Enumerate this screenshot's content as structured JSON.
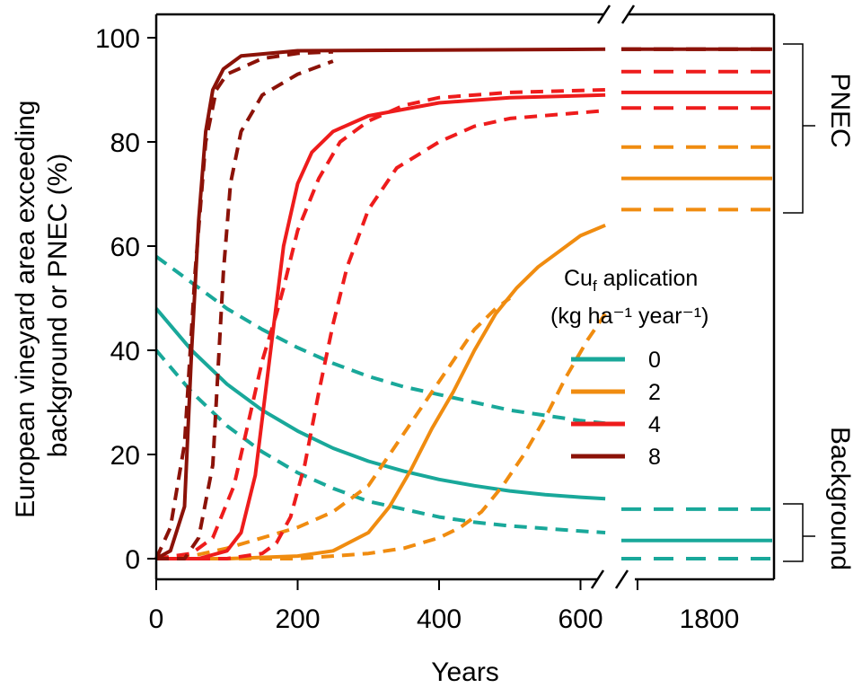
{
  "chart_data": {
    "type": "line",
    "xlabel": "Years",
    "ylabel_lines": [
      "European vineyard area exceeding",
      "background or PNEC (%)"
    ],
    "ylim": [
      0,
      100
    ],
    "xlim_main": [
      0,
      640
    ],
    "x_ticks_main": [
      0,
      200,
      400,
      600
    ],
    "x_tick_labels_main": [
      "0",
      "200",
      "400",
      "600"
    ],
    "x_tick_break": [
      1800
    ],
    "x_tick_labels_break": [
      "1800"
    ],
    "y_ticks": [
      0,
      20,
      40,
      60,
      80,
      100
    ],
    "y_tick_labels": [
      "0",
      "20",
      "40",
      "60",
      "80",
      "100"
    ],
    "axis_break": true,
    "legend": {
      "title_line1_main": "Cu",
      "title_line1_sub": "f",
      "title_line1_rest": " aplication",
      "title_line2": "(kg ha⁻¹ year⁻¹)",
      "placement": "center-right",
      "entries": [
        {
          "label": "0",
          "color": "#19a89a"
        },
        {
          "label": "2",
          "color": "#f08c10"
        },
        {
          "label": "4",
          "color": "#ee1c1c"
        },
        {
          "label": "8",
          "color": "#8b1208"
        }
      ]
    },
    "brackets": [
      {
        "label": "PNEC",
        "range": [
          67,
          98
        ]
      },
      {
        "label": "Background",
        "range": [
          0,
          11
        ]
      }
    ],
    "series": [
      {
        "name": "0",
        "style": "solid",
        "color": "#19a89a",
        "points": [
          [
            0,
            48
          ],
          [
            50,
            40
          ],
          [
            100,
            33.5
          ],
          [
            150,
            28.5
          ],
          [
            200,
            24.5
          ],
          [
            250,
            21.2
          ],
          [
            300,
            18.7
          ],
          [
            350,
            16.8
          ],
          [
            400,
            15.2
          ],
          [
            450,
            14
          ],
          [
            500,
            13
          ],
          [
            550,
            12.3
          ],
          [
            600,
            11.8
          ],
          [
            635,
            11.5
          ]
        ],
        "final": 3.5
      },
      {
        "name": "0",
        "style": "dashed",
        "color": "#19a89a",
        "points": [
          [
            0,
            58
          ],
          [
            50,
            53
          ],
          [
            100,
            48
          ],
          [
            150,
            44
          ],
          [
            200,
            40.5
          ],
          [
            250,
            37.5
          ],
          [
            300,
            35
          ],
          [
            350,
            33
          ],
          [
            400,
            31.5
          ],
          [
            450,
            30
          ],
          [
            500,
            28.5
          ],
          [
            550,
            27.5
          ],
          [
            600,
            26.5
          ],
          [
            635,
            26
          ]
        ],
        "final": 9.5
      },
      {
        "name": "0",
        "style": "dashed",
        "color": "#19a89a",
        "points": [
          [
            0,
            40
          ],
          [
            50,
            32
          ],
          [
            100,
            25.5
          ],
          [
            150,
            20.5
          ],
          [
            200,
            16.5
          ],
          [
            250,
            13.5
          ],
          [
            300,
            11
          ],
          [
            350,
            9.5
          ],
          [
            400,
            8
          ],
          [
            450,
            7
          ],
          [
            500,
            6.3
          ],
          [
            550,
            5.8
          ],
          [
            600,
            5.3
          ],
          [
            635,
            5
          ]
        ],
        "final": 0
      },
      {
        "name": "2",
        "style": "solid",
        "color": "#f08c10",
        "points": [
          [
            0,
            0
          ],
          [
            100,
            0
          ],
          [
            200,
            0.5
          ],
          [
            250,
            1.5
          ],
          [
            300,
            5
          ],
          [
            330,
            10
          ],
          [
            360,
            17
          ],
          [
            390,
            25
          ],
          [
            420,
            32
          ],
          [
            450,
            40
          ],
          [
            480,
            47
          ],
          [
            510,
            52
          ],
          [
            540,
            56
          ],
          [
            570,
            59
          ],
          [
            600,
            62
          ],
          [
            635,
            64
          ]
        ],
        "final": 73
      },
      {
        "name": "2",
        "style": "dashed",
        "color": "#f08c10",
        "points": [
          [
            0,
            0
          ],
          [
            50,
            0.5
          ],
          [
            100,
            2
          ],
          [
            150,
            4
          ],
          [
            200,
            6
          ],
          [
            250,
            9
          ],
          [
            300,
            14
          ],
          [
            330,
            20
          ],
          [
            360,
            26
          ],
          [
            390,
            32
          ],
          [
            420,
            38
          ],
          [
            450,
            44
          ],
          [
            480,
            48
          ],
          [
            500,
            50
          ]
        ],
        "final": 79
      },
      {
        "name": "2",
        "style": "dashed",
        "color": "#f08c10",
        "points": [
          [
            0,
            0
          ],
          [
            100,
            0
          ],
          [
            200,
            0
          ],
          [
            300,
            1
          ],
          [
            350,
            2
          ],
          [
            400,
            4
          ],
          [
            430,
            6
          ],
          [
            460,
            9
          ],
          [
            490,
            14
          ],
          [
            520,
            20
          ],
          [
            550,
            27
          ],
          [
            580,
            35
          ],
          [
            610,
            42
          ],
          [
            635,
            47
          ]
        ],
        "final": 67
      },
      {
        "name": "4",
        "style": "solid",
        "color": "#ee1c1c",
        "points": [
          [
            0,
            0
          ],
          [
            60,
            0
          ],
          [
            100,
            1.5
          ],
          [
            120,
            5
          ],
          [
            140,
            16
          ],
          [
            160,
            38
          ],
          [
            180,
            60
          ],
          [
            200,
            72
          ],
          [
            220,
            78
          ],
          [
            250,
            82
          ],
          [
            300,
            85
          ],
          [
            400,
            87.5
          ],
          [
            500,
            88.5
          ],
          [
            635,
            89
          ]
        ],
        "final": 89.5
      },
      {
        "name": "4",
        "style": "dashed",
        "color": "#ee1c1c",
        "points": [
          [
            0,
            0
          ],
          [
            50,
            1
          ],
          [
            80,
            4
          ],
          [
            110,
            14
          ],
          [
            130,
            26
          ],
          [
            150,
            38
          ],
          [
            170,
            47
          ],
          [
            180,
            52
          ],
          [
            200,
            63
          ],
          [
            230,
            73
          ],
          [
            260,
            80
          ],
          [
            300,
            84
          ],
          [
            350,
            87
          ],
          [
            400,
            88.5
          ],
          [
            500,
            89.5
          ],
          [
            635,
            90
          ]
        ],
        "final": 93.5
      },
      {
        "name": "4",
        "style": "dashed",
        "color": "#ee1c1c",
        "points": [
          [
            0,
            0
          ],
          [
            100,
            0
          ],
          [
            150,
            1
          ],
          [
            170,
            3
          ],
          [
            190,
            8
          ],
          [
            210,
            18
          ],
          [
            230,
            32
          ],
          [
            250,
            45
          ],
          [
            270,
            56
          ],
          [
            300,
            67
          ],
          [
            340,
            75
          ],
          [
            400,
            80
          ],
          [
            450,
            83
          ],
          [
            500,
            84.5
          ],
          [
            635,
            86
          ]
        ],
        "final": 86.5
      },
      {
        "name": "8",
        "style": "solid",
        "color": "#8b1208",
        "points": [
          [
            0,
            0
          ],
          [
            20,
            1.5
          ],
          [
            40,
            10
          ],
          [
            50,
            40
          ],
          [
            60,
            65
          ],
          [
            70,
            82
          ],
          [
            80,
            90
          ],
          [
            95,
            94
          ],
          [
            120,
            96.5
          ],
          [
            200,
            97.5
          ],
          [
            635,
            97.8
          ]
        ],
        "final": 97.8
      },
      {
        "name": "8",
        "style": "dashed",
        "color": "#8b1208",
        "points": [
          [
            0,
            0
          ],
          [
            20,
            6
          ],
          [
            40,
            22
          ],
          [
            55,
            55
          ],
          [
            70,
            80
          ],
          [
            85,
            90
          ],
          [
            100,
            93
          ],
          [
            150,
            96
          ],
          [
            200,
            97
          ],
          [
            250,
            97.3
          ]
        ],
        "final": 97.8
      },
      {
        "name": "8",
        "style": "dashed",
        "color": "#8b1208",
        "points": [
          [
            0,
            0
          ],
          [
            40,
            0
          ],
          [
            60,
            4
          ],
          [
            80,
            18
          ],
          [
            95,
            55
          ],
          [
            105,
            72
          ],
          [
            120,
            82
          ],
          [
            150,
            89
          ],
          [
            200,
            93
          ],
          [
            250,
            95.5
          ]
        ],
        "final": 97.8
      }
    ]
  }
}
